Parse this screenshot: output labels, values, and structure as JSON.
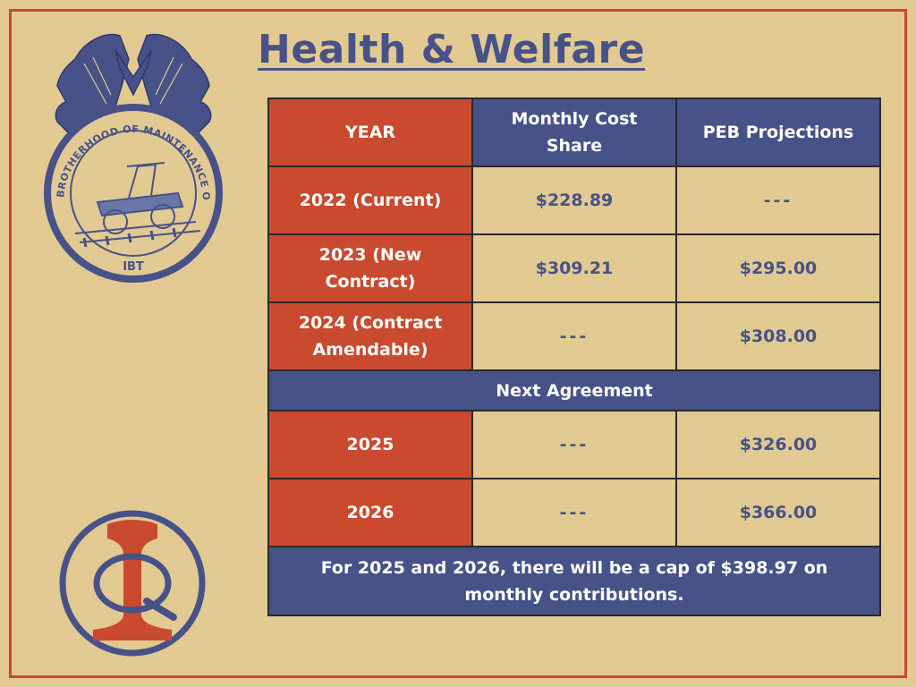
{
  "title": "Health & Welfare",
  "seal": {
    "ring_text": "BROTHERHOOD OF MAINTENANCE OF WAY EMPLOYES DIVISION",
    "bottom_text": "IBT"
  },
  "colors": {
    "background": "#e1c991",
    "accent_red": "#c94a2e",
    "navy": "#475288",
    "border": "#2a2a2a"
  },
  "table": {
    "headers": [
      "YEAR",
      "Monthly Cost Share",
      "PEB Projections"
    ],
    "rows": [
      {
        "year": "2022 (Current)",
        "cost_share": "$228.89",
        "peb": "---"
      },
      {
        "year": "2023 (New Contract)",
        "cost_share": "$309.21",
        "peb": "$295.00"
      },
      {
        "year": "2024 (Contract Amendable)",
        "cost_share": "---",
        "peb": "$308.00"
      }
    ],
    "section_label": "Next Agreement",
    "rows2": [
      {
        "year": "2025",
        "cost_share": "---",
        "peb": "$326.00"
      },
      {
        "year": "2026",
        "cost_share": "---",
        "peb": "$366.00"
      }
    ],
    "footnote": "For 2025 and 2026, there will be a cap of $398.97 on monthly contributions."
  },
  "icons": {
    "seal": "bmwed-seal-icon",
    "logo": "qi-rail-logo-icon"
  }
}
